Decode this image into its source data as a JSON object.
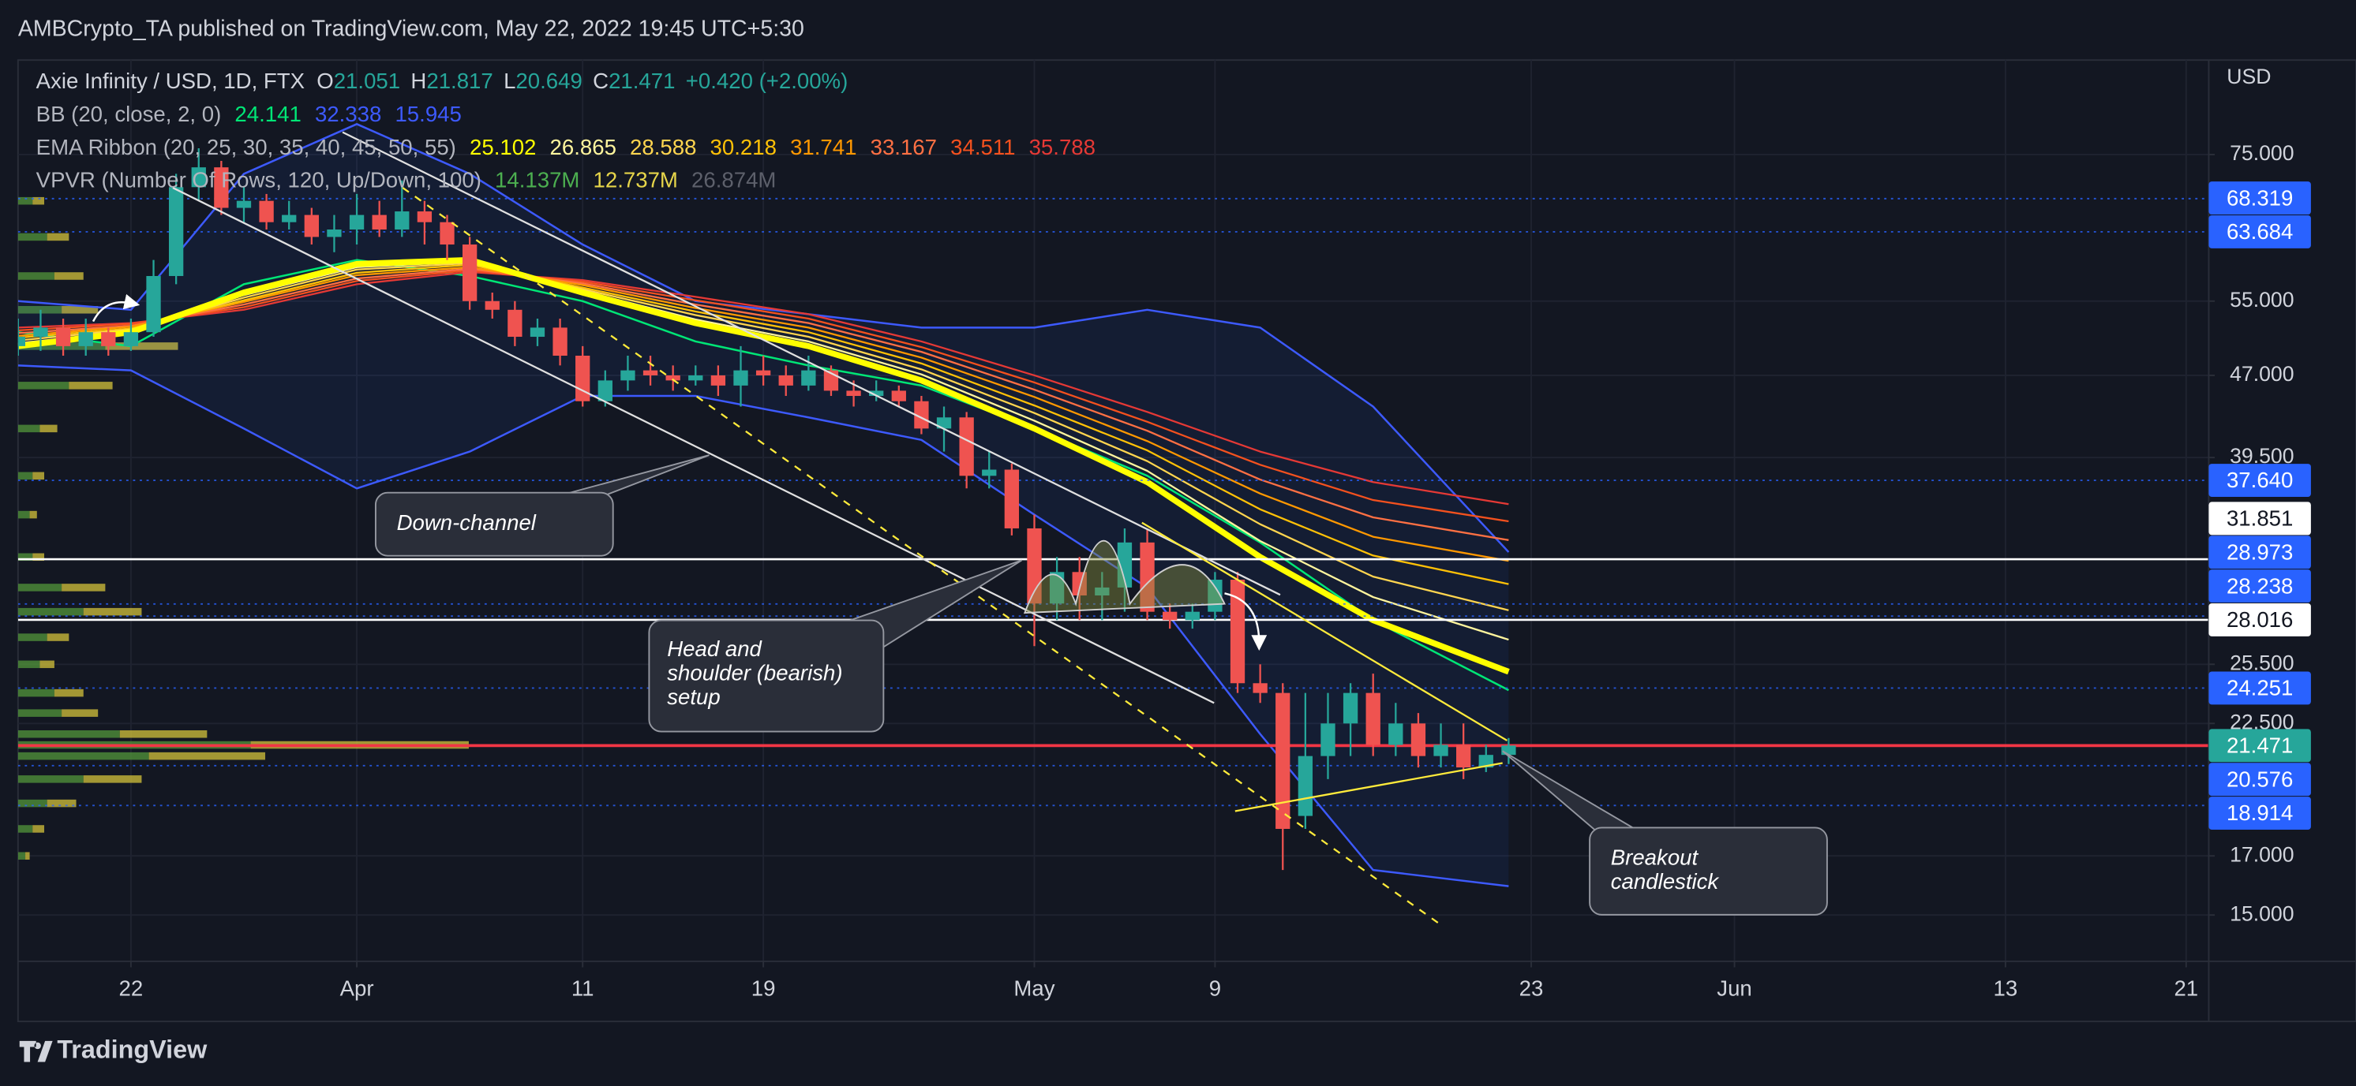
{
  "header": {
    "publisher": "AMBCrypto_TA published on TradingView.com, May 22, 2022 19:45 UTC+5:30"
  },
  "chart_data": {
    "type": "candlestick",
    "title": "Axie Infinity / USD, 1D, FTX",
    "ohlc_letters": [
      "O",
      "H",
      "L",
      "C"
    ],
    "change": "+0.420",
    "change_pct": "(+2.00%)",
    "x": [
      "2022-03-17",
      "2022-03-18",
      "2022-03-19",
      "2022-03-20",
      "2022-03-21",
      "2022-03-22",
      "2022-03-23",
      "2022-03-24",
      "2022-03-25",
      "2022-03-26",
      "2022-03-27",
      "2022-03-28",
      "2022-03-29",
      "2022-03-30",
      "2022-03-31",
      "2022-04-01",
      "2022-04-02",
      "2022-04-03",
      "2022-04-04",
      "2022-04-05",
      "2022-04-06",
      "2022-04-07",
      "2022-04-08",
      "2022-04-09",
      "2022-04-10",
      "2022-04-11",
      "2022-04-12",
      "2022-04-13",
      "2022-04-14",
      "2022-04-15",
      "2022-04-16",
      "2022-04-17",
      "2022-04-18",
      "2022-04-19",
      "2022-04-20",
      "2022-04-21",
      "2022-04-22",
      "2022-04-23",
      "2022-04-24",
      "2022-04-25",
      "2022-04-26",
      "2022-04-27",
      "2022-04-28",
      "2022-04-29",
      "2022-04-30",
      "2022-05-01",
      "2022-05-02",
      "2022-05-03",
      "2022-05-04",
      "2022-05-05",
      "2022-05-06",
      "2022-05-07",
      "2022-05-08",
      "2022-05-09",
      "2022-05-10",
      "2022-05-11",
      "2022-05-12",
      "2022-05-13",
      "2022-05-14",
      "2022-05-15",
      "2022-05-16",
      "2022-05-17",
      "2022-05-18",
      "2022-05-19",
      "2022-05-20",
      "2022-05-21",
      "2022-05-22"
    ],
    "ohlc": [
      [
        50,
        53,
        49,
        51
      ],
      [
        51,
        54,
        49.5,
        52
      ],
      [
        52,
        53,
        49,
        50
      ],
      [
        50,
        53,
        49,
        51.5
      ],
      [
        51.5,
        52,
        49,
        50
      ],
      [
        50,
        53,
        49.5,
        51.5
      ],
      [
        51.5,
        60,
        51,
        58
      ],
      [
        58,
        72,
        57,
        70
      ],
      [
        70,
        76,
        68,
        73
      ],
      [
        73,
        74,
        66,
        67
      ],
      [
        67,
        70,
        65,
        68
      ],
      [
        68,
        69,
        64,
        65
      ],
      [
        65,
        68,
        64,
        66
      ],
      [
        66,
        67,
        62,
        63
      ],
      [
        63,
        66,
        61,
        64
      ],
      [
        64,
        69,
        62,
        66
      ],
      [
        66,
        68,
        63,
        64
      ],
      [
        64,
        71,
        63,
        66.5
      ],
      [
        66.5,
        68,
        62,
        65
      ],
      [
        65,
        66,
        60,
        62
      ],
      [
        62,
        63,
        54,
        55
      ],
      [
        55,
        56,
        53,
        54
      ],
      [
        54,
        55,
        50,
        51
      ],
      [
        51,
        53,
        50,
        52
      ],
      [
        52,
        53,
        48,
        49
      ],
      [
        49,
        50,
        44,
        44.5
      ],
      [
        44.5,
        47.5,
        44,
        46.5
      ],
      [
        46.5,
        49,
        45.5,
        47.5
      ],
      [
        47.5,
        49,
        46,
        47
      ],
      [
        47,
        48,
        45.5,
        46.5
      ],
      [
        46.5,
        48,
        46,
        47
      ],
      [
        47,
        48,
        45,
        46
      ],
      [
        46,
        50,
        44,
        47.5
      ],
      [
        47.5,
        49,
        46,
        47
      ],
      [
        47,
        48,
        45,
        46
      ],
      [
        46,
        49,
        45.5,
        47.5
      ],
      [
        47.5,
        48,
        45,
        45.5
      ],
      [
        45.5,
        46.5,
        44,
        45
      ],
      [
        45,
        46.5,
        44.5,
        45.5
      ],
      [
        45.5,
        46,
        44,
        44.5
      ],
      [
        44.5,
        45,
        41.5,
        42
      ],
      [
        42,
        44,
        40,
        43
      ],
      [
        43,
        43.5,
        37,
        38
      ],
      [
        38,
        40,
        37,
        38.5
      ],
      [
        38.5,
        39,
        33.5,
        34
      ],
      [
        34,
        35,
        26.5,
        29
      ],
      [
        29,
        32,
        28,
        31
      ],
      [
        31,
        32,
        28,
        29.5
      ],
      [
        29.5,
        31,
        28,
        30
      ],
      [
        30,
        34,
        28.5,
        33
      ],
      [
        33,
        34,
        28,
        28.5
      ],
      [
        28.5,
        29,
        27.5,
        28
      ],
      [
        28,
        29,
        27.5,
        28.5
      ],
      [
        28.5,
        31,
        28,
        30.5
      ],
      [
        30.5,
        31,
        24,
        24.5
      ],
      [
        24.5,
        25.5,
        23.5,
        24
      ],
      [
        24,
        24.5,
        16.5,
        18
      ],
      [
        18.5,
        24,
        18,
        21
      ],
      [
        21,
        24,
        20,
        22.5
      ],
      [
        22.5,
        24.5,
        21,
        24
      ],
      [
        24,
        25,
        21,
        21.5
      ],
      [
        21.5,
        23.5,
        21,
        22.5
      ],
      [
        22.5,
        23,
        20.5,
        21
      ],
      [
        21,
        22.5,
        20.5,
        21.5
      ],
      [
        21.5,
        22.5,
        20,
        20.5
      ],
      [
        20.5,
        21.5,
        20.3,
        21.051
      ],
      [
        21.051,
        21.817,
        20.649,
        21.471
      ]
    ],
    "up_color": "#26a69a",
    "down_color": "#ef5350",
    "close_line_color": "#f23645",
    "log_scale": true,
    "ylim": [
      13.6,
      91.6
    ],
    "yticks": [
      {
        "value": 75,
        "label": "75.000"
      },
      {
        "value": 55,
        "label": "55.000"
      },
      {
        "value": 47,
        "label": "47.000"
      },
      {
        "value": 39.5,
        "label": "39.500"
      },
      {
        "value": 25.5,
        "label": "25.500"
      },
      {
        "value": 22.5,
        "label": "22.500"
      },
      {
        "value": 17,
        "label": "17.000"
      },
      {
        "value": 15,
        "label": "15.000"
      }
    ],
    "y_unit": "USD",
    "xlim": [
      "2022-03-17",
      "2022-06-22"
    ],
    "xticks": [
      {
        "value": "2022-03-22",
        "label": "22"
      },
      {
        "value": "2022-04-01",
        "label": "Apr"
      },
      {
        "value": "2022-04-11",
        "label": "11"
      },
      {
        "value": "2022-04-19",
        "label": "19"
      },
      {
        "value": "2022-05-01",
        "label": "May"
      },
      {
        "value": "2022-05-09",
        "label": "9"
      },
      {
        "value": "2022-05-23",
        "label": "23"
      },
      {
        "value": "2022-06-01",
        "label": "Jun"
      },
      {
        "value": "2022-06-13",
        "label": "13"
      },
      {
        "value": "2022-06-21",
        "label": "21"
      }
    ],
    "grid": true,
    "indicators": {
      "x": [
        "2022-03-17",
        "2022-03-22",
        "2022-03-27",
        "2022-04-01",
        "2022-04-06",
        "2022-04-11",
        "2022-04-16",
        "2022-04-21",
        "2022-04-26",
        "2022-05-01",
        "2022-05-06",
        "2022-05-11",
        "2022-05-16",
        "2022-05-22"
      ],
      "bb": {
        "name": "BB (20, close, 2, 0)",
        "fill": "rgba(41,98,255,0.08)",
        "series": [
          {
            "color": "#00e676",
            "values": [
              51.5,
              50,
              57,
              60,
              58,
              55,
              50.5,
              48,
              46,
              42,
              38,
              33,
              28,
              24.141
            ]
          },
          {
            "color": "#3d5afe",
            "values": [
              55,
              54,
              72,
              80,
              72,
              62,
              55,
              53.5,
              52,
              52,
              54,
              52,
              44,
              32.338
            ]
          },
          {
            "color": "#3d5afe",
            "values": [
              48,
              47.5,
              42,
              37,
              40,
              45,
              45,
              43,
              41,
              35,
              30,
              22,
              16.5,
              15.945
            ]
          }
        ]
      },
      "ema": {
        "name": "EMA Ribbon (20, 25, 30, 35, 40, 45, 50, 55)",
        "series": [
          {
            "color": "#ffff00",
            "values": [
              50,
              51.5,
              56,
              59.5,
              60,
              56,
              52.5,
              50,
              46.5,
              42,
              37.5,
              32,
              28,
              25.102
            ]
          },
          {
            "color": "#fff59d",
            "values": [
              50.3,
              51.6,
              55.7,
              59.1,
              59.8,
              56.2,
              52.9,
              50.5,
              47.1,
              42.7,
              38.4,
              33.1,
              29.4,
              26.865
            ]
          },
          {
            "color": "#ffd54f",
            "values": [
              50.6,
              51.8,
              55.4,
              58.8,
              59.6,
              56.4,
              53.4,
              51,
              47.6,
              43.4,
              39.2,
              34.3,
              30.7,
              28.588
            ]
          },
          {
            "color": "#ffc107",
            "values": [
              50.9,
              51.9,
              55.1,
              58.4,
              59.4,
              56.6,
              53.8,
              51.5,
              48.2,
              44.1,
              40.1,
              35.4,
              32.1,
              30.218
            ]
          },
          {
            "color": "#ff9800",
            "values": [
              51.1,
              52.1,
              54.9,
              58.1,
              59.1,
              56.9,
              54.2,
              52,
              48.8,
              44.9,
              40.9,
              36.6,
              33.4,
              31.741
            ]
          },
          {
            "color": "#ff7043",
            "values": [
              51.4,
              52.2,
              54.6,
              57.7,
              58.9,
              57.1,
              54.6,
              52.5,
              49.4,
              45.6,
              41.8,
              37.7,
              34.8,
              33.167
            ]
          },
          {
            "color": "#f4511e",
            "values": [
              51.7,
              52.4,
              54.3,
              57.4,
              58.7,
              57.3,
              55.1,
              53,
              49.9,
              46.3,
              42.6,
              38.9,
              36.1,
              34.511
            ]
          },
          {
            "color": "#e53935",
            "values": [
              52,
              52.5,
              54,
              57,
              58.5,
              57.5,
              55.5,
              53.5,
              50.5,
              47,
              43.5,
              40,
              37.5,
              35.788
            ]
          }
        ]
      }
    },
    "vpvr": {
      "name": "VPVR (Number Of Rows, 120, Up/Down, 100)",
      "totals": [
        14.137,
        12.737,
        26.874
      ],
      "total_labels": [
        "14.137M",
        "12.737M",
        "26.874M"
      ],
      "total_colors": [
        "#4caf50",
        "#e6d54a",
        "#5d606b"
      ],
      "up_color": "#4f8f3a",
      "down_color": "#c8b83a",
      "price": [
        17,
        18,
        19,
        20,
        21,
        21.5,
        22,
        23,
        24,
        25.5,
        27,
        28.5,
        30,
        32,
        35,
        38,
        42,
        46,
        50,
        54,
        58,
        63,
        68
      ],
      "up": [
        0.05,
        0.1,
        0.2,
        0.45,
        0.9,
        1.6,
        0.7,
        0.3,
        0.25,
        0.15,
        0.2,
        0.45,
        0.3,
        0.1,
        0.08,
        0.1,
        0.15,
        0.35,
        0.6,
        0.3,
        0.25,
        0.2,
        0.1
      ],
      "down": [
        0.03,
        0.08,
        0.2,
        0.4,
        0.8,
        1.5,
        0.6,
        0.25,
        0.2,
        0.1,
        0.15,
        0.4,
        0.3,
        0.08,
        0.05,
        0.08,
        0.12,
        0.3,
        0.5,
        0.25,
        0.2,
        0.15,
        0.08
      ]
    },
    "price_lines": {
      "values": [
        68.319,
        63.684,
        37.64,
        31.851,
        28.973,
        28.238,
        28.016,
        24.251,
        20.576,
        18.914
      ],
      "value_labels": [
        "68.319",
        "63.684",
        "37.640",
        "31.851",
        "28.973",
        "28.238",
        "28.016",
        "24.251",
        "20.576",
        "18.914"
      ],
      "colors": [
        "#2962ff",
        "#2962ff",
        "#2962ff",
        "#ffffff",
        "#2962ff",
        "#2962ff",
        "#ffffff",
        "#2962ff",
        "#2962ff",
        "#2962ff"
      ],
      "styles": [
        "dotted",
        "dotted",
        "dotted",
        "solid",
        "dotted",
        "dotted",
        "solid",
        "dotted",
        "dotted",
        "dotted"
      ]
    },
    "annotations": [
      [
        "Down-channel"
      ],
      [
        "Head and",
        "shoulder (bearish)",
        "setup"
      ],
      [
        "Breakout",
        "candlestick"
      ]
    ]
  },
  "footer": {
    "brand": "TradingView"
  }
}
